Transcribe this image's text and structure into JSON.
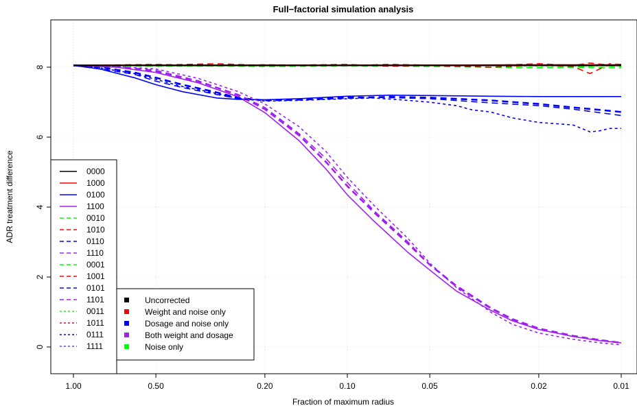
{
  "chart_data": {
    "type": "line",
    "title": "Full−factorial simulation analysis",
    "xlabel": "Fraction of maximum radius",
    "ylabel": "ADR treatment difference",
    "x_scale": "log",
    "x_reversed": true,
    "xlim": [
      1.0,
      0.01
    ],
    "ylim": [
      0,
      9
    ],
    "x_ticks": [
      {
        "value": 1.0,
        "label": "1.00"
      },
      {
        "value": 0.5,
        "label": "0.50"
      },
      {
        "value": 0.2,
        "label": "0.20"
      },
      {
        "value": 0.1,
        "label": "0.10"
      },
      {
        "value": 0.05,
        "label": "0.05"
      },
      {
        "value": 0.02,
        "label": "0.02"
      },
      {
        "value": 0.01,
        "label": "0.01"
      }
    ],
    "y_ticks": [
      {
        "value": 0,
        "label": "0"
      },
      {
        "value": 2,
        "label": "2"
      },
      {
        "value": 4,
        "label": "4"
      },
      {
        "value": 6,
        "label": "6"
      },
      {
        "value": 8,
        "label": "8"
      }
    ],
    "grid": true,
    "colors": {
      "black": "#000000",
      "red": "#ff0000",
      "blue": "#0000ff",
      "purple": "#a020f0",
      "green": "#00ff00"
    },
    "series": [
      {
        "name": "0000",
        "color": "#000000",
        "dash": "solid",
        "width": 2.2,
        "points": [
          [
            1,
            8.05
          ],
          [
            0.7,
            8.05
          ],
          [
            0.5,
            8.05
          ],
          [
            0.3,
            8.05
          ],
          [
            0.2,
            8.05
          ],
          [
            0.1,
            8.05
          ],
          [
            0.05,
            8.05
          ],
          [
            0.02,
            8.05
          ],
          [
            0.01,
            8.05
          ]
        ]
      },
      {
        "name": "1000",
        "color": "#ff0000",
        "dash": "solid",
        "width": 1.6,
        "points": [
          [
            1,
            8.05
          ],
          [
            0.5,
            8.06
          ],
          [
            0.2,
            8.06
          ],
          [
            0.1,
            8.06
          ],
          [
            0.05,
            8.06
          ],
          [
            0.02,
            8.07
          ],
          [
            0.01,
            8.07
          ]
        ]
      },
      {
        "name": "0100",
        "color": "#0000ff",
        "dash": "solid",
        "width": 1.6,
        "points": [
          [
            1,
            8.05
          ],
          [
            0.8,
            7.95
          ],
          [
            0.6,
            7.7
          ],
          [
            0.5,
            7.5
          ],
          [
            0.4,
            7.3
          ],
          [
            0.3,
            7.12
          ],
          [
            0.25,
            7.08
          ],
          [
            0.2,
            7.07
          ],
          [
            0.15,
            7.1
          ],
          [
            0.1,
            7.17
          ],
          [
            0.07,
            7.2
          ],
          [
            0.05,
            7.19
          ],
          [
            0.03,
            7.17
          ],
          [
            0.02,
            7.16
          ],
          [
            0.01,
            7.16
          ]
        ]
      },
      {
        "name": "1100",
        "color": "#a020f0",
        "dash": "solid",
        "width": 1.6,
        "points": [
          [
            1,
            8.05
          ],
          [
            0.7,
            8.0
          ],
          [
            0.5,
            7.85
          ],
          [
            0.35,
            7.55
          ],
          [
            0.25,
            7.15
          ],
          [
            0.2,
            6.7
          ],
          [
            0.15,
            5.9
          ],
          [
            0.12,
            5.1
          ],
          [
            0.1,
            4.35
          ],
          [
            0.08,
            3.6
          ],
          [
            0.06,
            2.7
          ],
          [
            0.05,
            2.2
          ],
          [
            0.04,
            1.6
          ],
          [
            0.03,
            1.05
          ],
          [
            0.025,
            0.75
          ],
          [
            0.02,
            0.5
          ],
          [
            0.015,
            0.3
          ],
          [
            0.012,
            0.18
          ],
          [
            0.01,
            0.12
          ]
        ]
      },
      {
        "name": "0010",
        "color": "#00ff00",
        "dash": "long",
        "width": 1.6,
        "points": [
          [
            1,
            8.05
          ],
          [
            0.5,
            8.04
          ],
          [
            0.2,
            8.05
          ],
          [
            0.1,
            8.05
          ],
          [
            0.05,
            8.04
          ],
          [
            0.03,
            8.0
          ],
          [
            0.02,
            7.98
          ],
          [
            0.015,
            8.0
          ],
          [
            0.012,
            8.05
          ],
          [
            0.01,
            8.02
          ]
        ]
      },
      {
        "name": "1010",
        "color": "#ff0000",
        "dash": "long",
        "width": 1.6,
        "points": [
          [
            1,
            8.05
          ],
          [
            0.5,
            8.08
          ],
          [
            0.3,
            8.05
          ],
          [
            0.2,
            8.07
          ],
          [
            0.1,
            8.05
          ],
          [
            0.07,
            8.08
          ],
          [
            0.05,
            8.06
          ],
          [
            0.03,
            8.05
          ],
          [
            0.02,
            8.1
          ],
          [
            0.015,
            8.05
          ],
          [
            0.013,
            8.12
          ],
          [
            0.011,
            8.06
          ],
          [
            0.01,
            8.08
          ]
        ]
      },
      {
        "name": "0110",
        "color": "#0000ff",
        "dash": "long",
        "width": 2.6,
        "points": [
          [
            1,
            8.05
          ],
          [
            0.8,
            8.0
          ],
          [
            0.6,
            7.85
          ],
          [
            0.5,
            7.7
          ],
          [
            0.4,
            7.5
          ],
          [
            0.3,
            7.28
          ],
          [
            0.25,
            7.12
          ],
          [
            0.2,
            7.05
          ],
          [
            0.15,
            7.07
          ],
          [
            0.1,
            7.12
          ],
          [
            0.07,
            7.15
          ],
          [
            0.05,
            7.13
          ],
          [
            0.03,
            7.05
          ],
          [
            0.02,
            6.95
          ],
          [
            0.015,
            6.85
          ],
          [
            0.012,
            6.78
          ],
          [
            0.01,
            6.72
          ]
        ]
      },
      {
        "name": "1110",
        "color": "#a020f0",
        "dash": "long",
        "width": 2.6,
        "points": [
          [
            1,
            8.05
          ],
          [
            0.7,
            8.02
          ],
          [
            0.5,
            7.9
          ],
          [
            0.35,
            7.6
          ],
          [
            0.25,
            7.2
          ],
          [
            0.2,
            6.8
          ],
          [
            0.15,
            6.05
          ],
          [
            0.12,
            5.3
          ],
          [
            0.1,
            4.6
          ],
          [
            0.08,
            3.85
          ],
          [
            0.06,
            2.95
          ],
          [
            0.05,
            2.35
          ],
          [
            0.04,
            1.75
          ],
          [
            0.03,
            1.12
          ],
          [
            0.025,
            0.8
          ],
          [
            0.02,
            0.53
          ],
          [
            0.015,
            0.32
          ],
          [
            0.012,
            0.2
          ],
          [
            0.01,
            0.12
          ]
        ]
      },
      {
        "name": "0001",
        "color": "#00ff00",
        "dash": "long",
        "width": 1.6,
        "points": [
          [
            1,
            8.05
          ],
          [
            0.5,
            8.03
          ],
          [
            0.3,
            8.04
          ],
          [
            0.2,
            8.02
          ],
          [
            0.1,
            8.04
          ],
          [
            0.05,
            8.02
          ],
          [
            0.03,
            8.0
          ],
          [
            0.02,
            7.99
          ],
          [
            0.015,
            8.0
          ],
          [
            0.01,
            7.98
          ]
        ]
      },
      {
        "name": "1001",
        "color": "#ff0000",
        "dash": "long",
        "width": 1.6,
        "points": [
          [
            1,
            8.05
          ],
          [
            0.5,
            8.06
          ],
          [
            0.3,
            8.1
          ],
          [
            0.2,
            8.05
          ],
          [
            0.1,
            8.08
          ],
          [
            0.07,
            8.03
          ],
          [
            0.05,
            8.05
          ],
          [
            0.03,
            8.0
          ],
          [
            0.02,
            8.06
          ],
          [
            0.015,
            8.02
          ],
          [
            0.013,
            7.82
          ],
          [
            0.012,
            7.95
          ],
          [
            0.011,
            8.1
          ],
          [
            0.01,
            8.08
          ]
        ]
      },
      {
        "name": "0101",
        "color": "#0000ff",
        "dash": "long",
        "width": 1.6,
        "points": [
          [
            1,
            8.05
          ],
          [
            0.8,
            7.95
          ],
          [
            0.6,
            7.8
          ],
          [
            0.5,
            7.6
          ],
          [
            0.4,
            7.42
          ],
          [
            0.3,
            7.22
          ],
          [
            0.25,
            7.1
          ],
          [
            0.2,
            7.05
          ],
          [
            0.15,
            7.08
          ],
          [
            0.1,
            7.15
          ],
          [
            0.07,
            7.13
          ],
          [
            0.05,
            7.1
          ],
          [
            0.03,
            6.98
          ],
          [
            0.02,
            6.9
          ],
          [
            0.015,
            6.8
          ],
          [
            0.01,
            6.62
          ]
        ]
      },
      {
        "name": "1101",
        "color": "#a020f0",
        "dash": "long",
        "width": 1.6,
        "points": [
          [
            1,
            8.05
          ],
          [
            0.7,
            8.0
          ],
          [
            0.5,
            7.88
          ],
          [
            0.35,
            7.58
          ],
          [
            0.25,
            7.22
          ],
          [
            0.2,
            6.85
          ],
          [
            0.15,
            6.1
          ],
          [
            0.12,
            5.4
          ],
          [
            0.1,
            4.7
          ],
          [
            0.08,
            3.9
          ],
          [
            0.06,
            3.0
          ],
          [
            0.05,
            2.35
          ],
          [
            0.04,
            1.72
          ],
          [
            0.03,
            1.1
          ],
          [
            0.025,
            0.78
          ],
          [
            0.02,
            0.5
          ],
          [
            0.015,
            0.3
          ],
          [
            0.012,
            0.2
          ],
          [
            0.01,
            0.12
          ]
        ]
      },
      {
        "name": "0011",
        "color": "#00ff00",
        "dash": "short",
        "width": 1.6,
        "points": [
          [
            1,
            8.05
          ],
          [
            0.5,
            8.04
          ],
          [
            0.2,
            8.04
          ],
          [
            0.1,
            8.05
          ],
          [
            0.05,
            8.05
          ],
          [
            0.02,
            8.04
          ],
          [
            0.01,
            8.04
          ]
        ]
      },
      {
        "name": "1011",
        "color": "#ff0000",
        "dash": "short",
        "width": 1.6,
        "points": [
          [
            1,
            8.05
          ],
          [
            0.5,
            8.06
          ],
          [
            0.2,
            8.06
          ],
          [
            0.1,
            8.06
          ],
          [
            0.05,
            8.06
          ],
          [
            0.02,
            8.06
          ],
          [
            0.01,
            8.06
          ]
        ]
      },
      {
        "name": "0111",
        "color": "#0000ff",
        "dash": "short",
        "width": 1.6,
        "points": [
          [
            1,
            8.05
          ],
          [
            0.8,
            7.98
          ],
          [
            0.6,
            7.82
          ],
          [
            0.5,
            7.65
          ],
          [
            0.4,
            7.45
          ],
          [
            0.3,
            7.25
          ],
          [
            0.25,
            7.1
          ],
          [
            0.2,
            7.03
          ],
          [
            0.15,
            7.05
          ],
          [
            0.1,
            7.1
          ],
          [
            0.08,
            7.12
          ],
          [
            0.06,
            7.05
          ],
          [
            0.05,
            7.0
          ],
          [
            0.04,
            6.9
          ],
          [
            0.035,
            6.78
          ],
          [
            0.03,
            6.72
          ],
          [
            0.025,
            6.55
          ],
          [
            0.02,
            6.42
          ],
          [
            0.017,
            6.38
          ],
          [
            0.015,
            6.35
          ],
          [
            0.013,
            6.15
          ],
          [
            0.012,
            6.18
          ],
          [
            0.011,
            6.25
          ],
          [
            0.01,
            6.25
          ]
        ]
      },
      {
        "name": "1111",
        "color": "#a020f0",
        "dash": "short",
        "width": 1.6,
        "points": [
          [
            1,
            8.05
          ],
          [
            0.7,
            8.02
          ],
          [
            0.5,
            7.95
          ],
          [
            0.35,
            7.68
          ],
          [
            0.25,
            7.3
          ],
          [
            0.2,
            6.95
          ],
          [
            0.15,
            6.3
          ],
          [
            0.12,
            5.6
          ],
          [
            0.1,
            4.85
          ],
          [
            0.08,
            4.05
          ],
          [
            0.06,
            3.1
          ],
          [
            0.05,
            2.4
          ],
          [
            0.04,
            1.7
          ],
          [
            0.03,
            1.0
          ],
          [
            0.025,
            0.65
          ],
          [
            0.02,
            0.4
          ],
          [
            0.015,
            0.22
          ],
          [
            0.012,
            0.12
          ],
          [
            0.01,
            0.06
          ]
        ]
      }
    ],
    "legend_lines": {
      "placement": "left-middle",
      "entries": [
        {
          "label": "0000",
          "color": "#000000",
          "dash": "solid"
        },
        {
          "label": "1000",
          "color": "#ff0000",
          "dash": "solid"
        },
        {
          "label": "0100",
          "color": "#0000ff",
          "dash": "solid"
        },
        {
          "label": "1100",
          "color": "#a020f0",
          "dash": "solid"
        },
        {
          "label": "0010",
          "color": "#00ff00",
          "dash": "long"
        },
        {
          "label": "1010",
          "color": "#ff0000",
          "dash": "long"
        },
        {
          "label": "0110",
          "color": "#0000ff",
          "dash": "long"
        },
        {
          "label": "1110",
          "color": "#a020f0",
          "dash": "long"
        },
        {
          "label": "0001",
          "color": "#00ff00",
          "dash": "long"
        },
        {
          "label": "1001",
          "color": "#ff0000",
          "dash": "long"
        },
        {
          "label": "0101",
          "color": "#0000ff",
          "dash": "long"
        },
        {
          "label": "1101",
          "color": "#a020f0",
          "dash": "long"
        },
        {
          "label": "0011",
          "color": "#00ff00",
          "dash": "short"
        },
        {
          "label": "1011",
          "color": "#ff0000",
          "dash": "short"
        },
        {
          "label": "0111",
          "color": "#0000ff",
          "dash": "short"
        },
        {
          "label": "1111",
          "color": "#a020f0",
          "dash": "short"
        }
      ]
    },
    "legend_colors": {
      "placement": "bottom-left",
      "entries": [
        {
          "label": "Uncorrected",
          "color": "#000000"
        },
        {
          "label": "Weight and noise only",
          "color": "#ff0000"
        },
        {
          "label": "Dosage and noise only",
          "color": "#0000ff"
        },
        {
          "label": "Both weight and dosage",
          "color": "#a020f0"
        },
        {
          "label": "Noise only",
          "color": "#00ff00"
        }
      ]
    }
  }
}
